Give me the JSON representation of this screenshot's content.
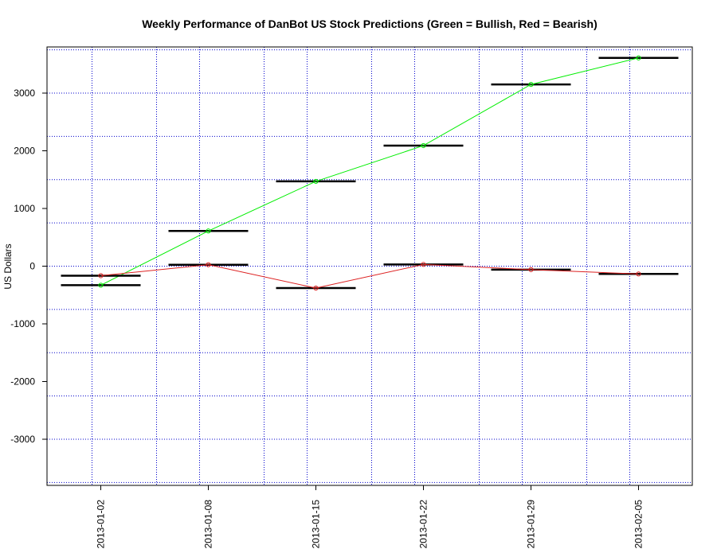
{
  "chart_data": {
    "type": "line",
    "title": "Weekly Performance of DanBot US Stock Predictions (Green = Bullish, Red = Bearish)",
    "xlabel": "",
    "ylabel": "US Dollars",
    "categories": [
      "2013-01-02",
      "2013-01-08",
      "2013-01-15",
      "2013-01-22",
      "2013-01-29",
      "2013-02-05"
    ],
    "ylim": [
      -3800,
      3800
    ],
    "yticks": [
      -3000,
      -2000,
      -1000,
      0,
      1000,
      2000,
      3000
    ],
    "grid": true,
    "series": [
      {
        "color": "#00ee00",
        "values": [
          -330,
          610,
          1470,
          2090,
          3150,
          3610
        ]
      },
      {
        "color": "#dd2222",
        "values": [
          -165,
          25,
          -380,
          30,
          -60,
          -135
        ]
      }
    ],
    "colors": {
      "grid": "#0000cc",
      "axis": "#000000",
      "bar": "#000000"
    }
  }
}
